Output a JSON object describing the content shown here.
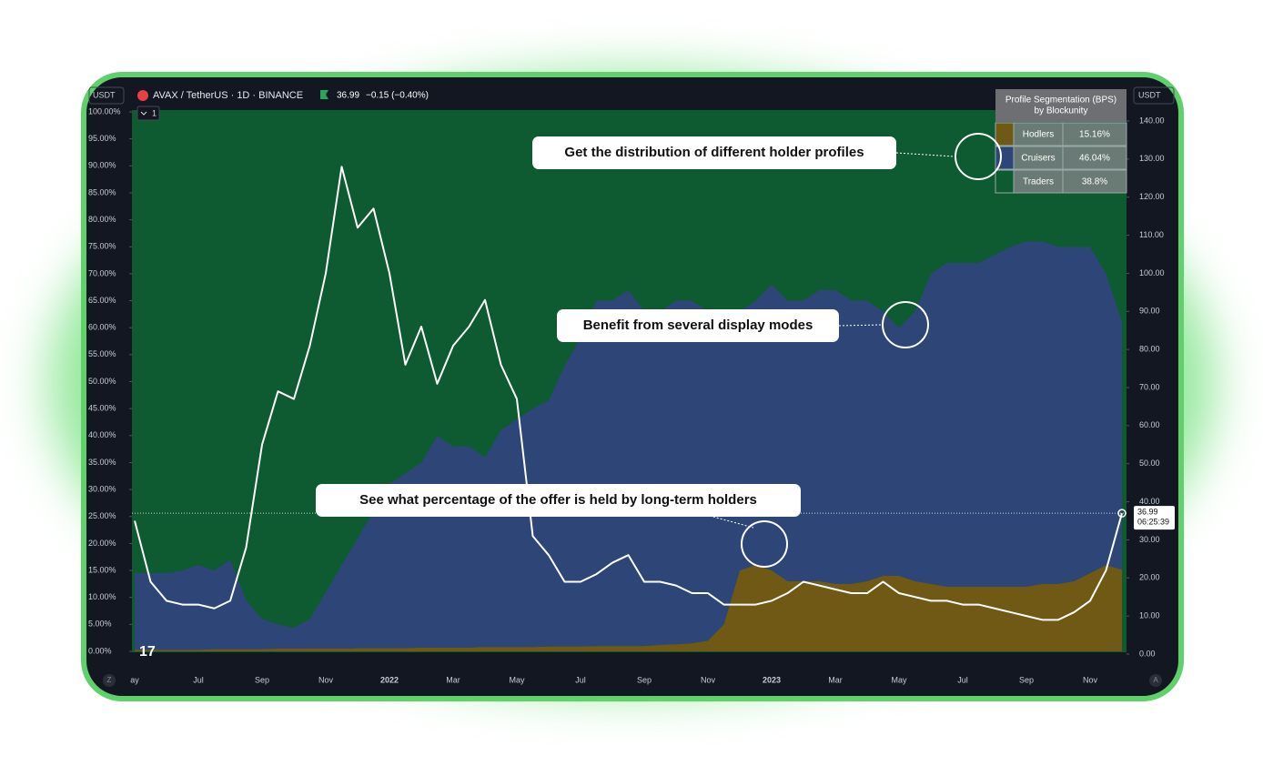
{
  "chart_data": {
    "type": "stacked_area",
    "symbol": "AVAX / TetherUS · 1D · BINANCE",
    "last_price": "36.99",
    "change": "−0.15 (−0.40%)",
    "currency": "USDT",
    "pane_index": "1",
    "countdown": "06:25:39",
    "scale_buttons": [
      "Z",
      "A"
    ],
    "logo": "17",
    "categories": [
      "ay",
      null,
      null,
      null,
      "Jul",
      null,
      null,
      null,
      "Sep",
      null,
      null,
      null,
      "Nov",
      null,
      null,
      null,
      "2022",
      null,
      null,
      null,
      "Mar",
      null,
      null,
      null,
      "May",
      null,
      null,
      null,
      "Jul",
      null,
      null,
      null,
      "Sep",
      null,
      null,
      null,
      "Nov",
      null,
      null,
      null,
      "2023",
      null,
      null,
      null,
      "Mar",
      null,
      null,
      null,
      "May",
      null,
      null,
      null,
      "Jul",
      null,
      null,
      null,
      "Sep",
      null,
      null,
      null,
      "Nov",
      null,
      null
    ],
    "series": [
      {
        "name": "Hodlers",
        "color": "#6f5915",
        "values": [
          0.3,
          0.3,
          0.3,
          0.3,
          0.3,
          0.4,
          0.4,
          0.4,
          0.4,
          0.5,
          0.5,
          0.5,
          0.5,
          0.5,
          0.6,
          0.6,
          0.6,
          0.6,
          0.7,
          0.7,
          0.7,
          0.7,
          0.8,
          0.8,
          0.8,
          0.8,
          0.9,
          0.9,
          0.9,
          1,
          1,
          1,
          1,
          1.2,
          1.3,
          1.5,
          2,
          5,
          15,
          16,
          15,
          13,
          13,
          13,
          12.5,
          12.5,
          13,
          14,
          14,
          13,
          12.5,
          12,
          12,
          12,
          12,
          12,
          12,
          12.5,
          12.5,
          13,
          14.5,
          16,
          15.16
        ]
      },
      {
        "name": "Cruisers",
        "color": "#2e4677",
        "values": [
          14.2,
          14.2,
          14.2,
          14.7,
          15.7,
          14.6,
          16.6,
          9.1,
          5.6,
          4.5,
          3.9,
          5.5,
          10.5,
          15.5,
          20.4,
          25.4,
          30.4,
          32.4,
          34.3,
          39.3,
          37.3,
          37.3,
          35.2,
          40.2,
          42.2,
          44.2,
          45.6,
          52.1,
          57.1,
          64,
          64,
          66,
          62,
          61.8,
          63.7,
          63.5,
          61,
          57,
          48,
          49,
          53,
          52,
          52,
          54,
          54.5,
          52.5,
          52,
          49,
          46,
          50,
          57.5,
          60,
          60,
          60,
          61.5,
          63,
          64,
          63.5,
          62.5,
          62,
          60.5,
          54,
          46.04
        ]
      },
      {
        "name": "Traders",
        "color": "#0e5a31",
        "values": [
          85.5,
          85.5,
          85.5,
          85,
          84,
          85,
          83,
          90.5,
          94,
          95,
          95.6,
          94,
          89,
          84,
          79,
          74,
          69,
          67,
          65,
          60,
          62,
          62,
          64,
          59,
          57,
          55,
          53.5,
          47,
          42,
          35,
          35,
          33,
          37,
          37,
          35,
          35,
          37,
          38,
          37,
          35,
          32,
          35,
          35,
          33,
          33,
          35,
          35,
          37,
          40,
          37,
          30,
          28,
          28,
          28,
          26.5,
          25,
          24,
          24,
          25,
          25,
          25,
          30,
          38.8
        ]
      },
      {
        "name": "AVAX",
        "color": "#ffffff",
        "axis": "y2",
        "type": "line",
        "values": [
          35,
          19,
          14,
          13,
          13,
          12,
          14,
          28,
          55,
          69,
          67,
          81,
          100,
          128,
          112,
          117,
          100,
          76,
          86,
          71,
          81,
          86,
          93,
          76,
          67,
          31,
          26,
          19,
          19,
          21,
          24,
          26,
          19,
          19,
          18,
          16,
          16,
          13,
          13,
          13,
          14,
          16,
          19,
          18,
          17,
          16,
          16,
          19,
          16,
          15,
          14,
          14,
          13,
          13,
          12,
          11,
          10,
          9,
          9,
          11,
          14,
          22,
          36.99
        ]
      }
    ],
    "ylim": [
      0,
      100
    ],
    "yticks": [
      {
        "value": 0,
        "label": "0.00%"
      },
      {
        "value": 5,
        "label": "5.00%"
      },
      {
        "value": 10,
        "label": "10.00%"
      },
      {
        "value": 15,
        "label": "15.00%"
      },
      {
        "value": 20,
        "label": "20.00%"
      },
      {
        "value": 25,
        "label": "25.00%"
      },
      {
        "value": 30,
        "label": "30.00%"
      },
      {
        "value": 35,
        "label": "35.00%"
      },
      {
        "value": 40,
        "label": "40.00%"
      },
      {
        "value": 45,
        "label": "45.00%"
      },
      {
        "value": 50,
        "label": "50.00%"
      },
      {
        "value": 55,
        "label": "55.00%"
      },
      {
        "value": 60,
        "label": "60.00%"
      },
      {
        "value": 65,
        "label": "65.00%"
      },
      {
        "value": 70,
        "label": "70.00%"
      },
      {
        "value": 75,
        "label": "75.00%"
      },
      {
        "value": 80,
        "label": "80.00%"
      },
      {
        "value": 85,
        "label": "85.00%"
      },
      {
        "value": 90,
        "label": "90.00%"
      },
      {
        "value": 95,
        "label": "95.00%"
      },
      {
        "value": 100,
        "label": "100.00%"
      }
    ],
    "y2lim": [
      0,
      140
    ],
    "y2ticks": [
      {
        "value": 0,
        "label": "0.00"
      },
      {
        "value": 10,
        "label": "10.00"
      },
      {
        "value": 20,
        "label": "20.00"
      },
      {
        "value": 30,
        "label": "30.00"
      },
      {
        "value": 40,
        "label": "40.00"
      },
      {
        "value": 50,
        "label": "50.00"
      },
      {
        "value": 60,
        "label": "60.00"
      },
      {
        "value": 70,
        "label": "70.00"
      },
      {
        "value": 80,
        "label": "80.00"
      },
      {
        "value": 90,
        "label": "90.00"
      },
      {
        "value": 100,
        "label": "100.00"
      },
      {
        "value": 110,
        "label": "110.00"
      },
      {
        "value": 120,
        "label": "120.00"
      },
      {
        "value": 130,
        "label": "130.00"
      },
      {
        "value": 140,
        "label": "140.00"
      }
    ],
    "table": {
      "title": "Profile Segmentation (BPS)",
      "subtitle": "by Blockunity",
      "values": [
        "15.16%",
        "46.04%",
        "38.8%"
      ]
    },
    "annotations": [
      "Get the distribution of different holder profiles",
      "Benefit from several display modes",
      "See what percentage of the offer is held by long-term holders"
    ]
  }
}
